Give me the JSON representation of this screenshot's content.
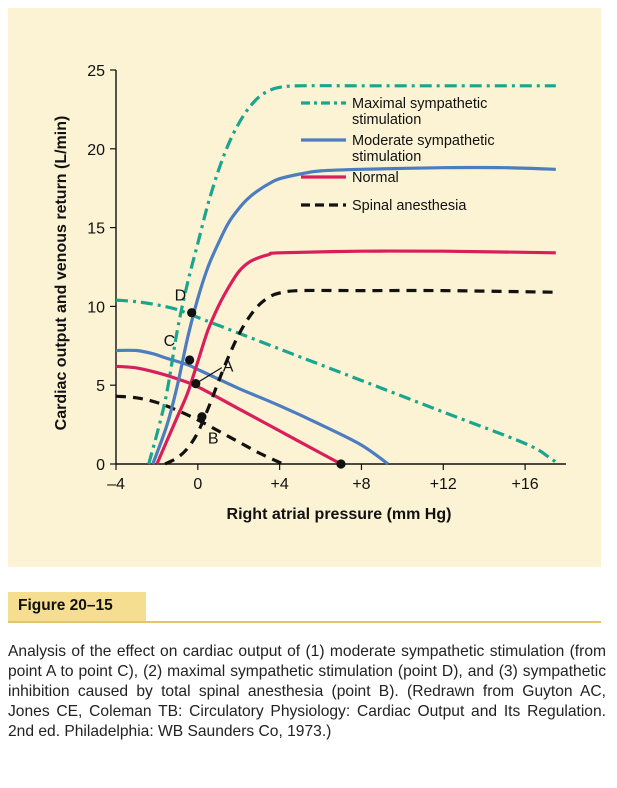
{
  "figure": {
    "label": "Figure 20–15",
    "caption": "Analysis of the effect on cardiac output of (1) moderate sympathetic stimulation (from point A to point C), (2) maximal sympathetic stimulation (point D), and (3) sympathetic inhibition caused by total spinal anesthesia (point B). (Redrawn from Guyton AC, Jones CE, Coleman TB: Circulatory Physiology: Cardiac Output and Its Regulation. 2nd ed. Philadelphia: WB Saunders Co, 1973.)"
  },
  "chart_data": {
    "type": "line",
    "title": "",
    "xlabel": "Right atrial pressure (mm Hg)",
    "ylabel": "Cardiac output and venous return (L/min)",
    "xlim": [
      -4,
      18
    ],
    "ylim": [
      0,
      25
    ],
    "x_ticks": [
      -4,
      0,
      4,
      8,
      12,
      16
    ],
    "x_tick_labels": [
      "–4",
      "0",
      "+4",
      "+8",
      "+12",
      "+16"
    ],
    "y_ticks": [
      0,
      5,
      10,
      15,
      20,
      25
    ],
    "y_tick_labels": [
      "0",
      "5",
      "10",
      "15",
      "20",
      "25"
    ],
    "grid": false,
    "legend_position": "top-right",
    "colors": {
      "maximal": "#1AA58E",
      "moderate": "#4C7DC0",
      "normal": "#D91E5B",
      "spinal": "#111111",
      "panel_background": "#FCF3D4",
      "label_band": "#F5DE8F"
    },
    "series": [
      {
        "name": "Maximal sympathetic stimulation",
        "legend_lines": [
          "Maximal sympathetic",
          "stimulation"
        ],
        "style": "dash-dot",
        "color": "#1AA58E",
        "cardiac_output_curve": [
          [
            -2.4,
            0
          ],
          [
            -1.6,
            4
          ],
          [
            -1.0,
            8.5
          ],
          [
            -0.5,
            11.5
          ],
          [
            0,
            14
          ],
          [
            0.5,
            16.5
          ],
          [
            1,
            18.6
          ],
          [
            1.5,
            20.3
          ],
          [
            2,
            21.6
          ],
          [
            2.5,
            22.6
          ],
          [
            3,
            23.3
          ],
          [
            3.5,
            23.7
          ],
          [
            4,
            23.9
          ],
          [
            5,
            24
          ],
          [
            8,
            24
          ],
          [
            12,
            24
          ],
          [
            17.5,
            24
          ]
        ],
        "venous_return_curve": [
          [
            -4,
            10.4
          ],
          [
            -3,
            10.3
          ],
          [
            -2,
            10.1
          ],
          [
            -1,
            9.8
          ],
          [
            0,
            9.3
          ],
          [
            4,
            7.3
          ],
          [
            8,
            5.3
          ],
          [
            12,
            3.3
          ],
          [
            16,
            1.3
          ],
          [
            17.2,
            0.4
          ],
          [
            17.6,
            0
          ]
        ]
      },
      {
        "name": "Moderate sympathetic stimulation",
        "legend_lines": [
          "Moderate sympathetic",
          "stimulation"
        ],
        "style": "solid",
        "color": "#4C7DC0",
        "cardiac_output_curve": [
          [
            -2.2,
            0
          ],
          [
            -1.5,
            2.5
          ],
          [
            -1.0,
            5
          ],
          [
            -0.5,
            8
          ],
          [
            0,
            10.5
          ],
          [
            0.5,
            12.5
          ],
          [
            1,
            14
          ],
          [
            1.5,
            15.3
          ],
          [
            2,
            16.2
          ],
          [
            2.5,
            16.9
          ],
          [
            3,
            17.4
          ],
          [
            3.5,
            17.8
          ],
          [
            4,
            18.1
          ],
          [
            5,
            18.4
          ],
          [
            6,
            18.6
          ],
          [
            8,
            18.7
          ],
          [
            12,
            18.8
          ],
          [
            15,
            18.8
          ],
          [
            17.5,
            18.7
          ]
        ],
        "venous_return_curve": [
          [
            -4,
            7.2
          ],
          [
            -3,
            7.2
          ],
          [
            -2.2,
            7.0
          ],
          [
            -1.5,
            6.7
          ],
          [
            -0.5,
            6.3
          ],
          [
            0,
            6.0
          ],
          [
            2,
            4.8
          ],
          [
            4,
            3.7
          ],
          [
            6,
            2.5
          ],
          [
            8,
            1.2
          ],
          [
            9.3,
            0
          ]
        ]
      },
      {
        "name": "Normal",
        "legend_lines": [
          "Normal"
        ],
        "style": "solid",
        "color": "#D91E5B",
        "cardiac_output_curve": [
          [
            -2.0,
            0
          ],
          [
            -1.5,
            1.5
          ],
          [
            -1.0,
            3
          ],
          [
            -0.5,
            4.5
          ],
          [
            0,
            6.5
          ],
          [
            0.5,
            8.5
          ],
          [
            1,
            10
          ],
          [
            1.5,
            11.2
          ],
          [
            2,
            12.2
          ],
          [
            2.5,
            12.8
          ],
          [
            3,
            13.1
          ],
          [
            3.5,
            13.3
          ],
          [
            4,
            13.4
          ],
          [
            8,
            13.5
          ],
          [
            12,
            13.5
          ],
          [
            17.5,
            13.4
          ]
        ],
        "venous_return_curve": [
          [
            -4,
            6.2
          ],
          [
            -3,
            6.1
          ],
          [
            -2,
            5.8
          ],
          [
            -1,
            5.4
          ],
          [
            0,
            4.9
          ],
          [
            2,
            3.5
          ],
          [
            4,
            2.1
          ],
          [
            6,
            0.7
          ],
          [
            7,
            0
          ]
        ]
      },
      {
        "name": "Spinal anesthesia",
        "legend_lines": [
          "Spinal anesthesia"
        ],
        "style": "dashed",
        "color": "#111111",
        "cardiac_output_curve": [
          [
            -1.6,
            0
          ],
          [
            -1,
            0.4
          ],
          [
            -0.5,
            1
          ],
          [
            0,
            2
          ],
          [
            0.5,
            3.5
          ],
          [
            1,
            5.2
          ],
          [
            1.5,
            6.8
          ],
          [
            2,
            8.2
          ],
          [
            2.5,
            9.3
          ],
          [
            3,
            10.1
          ],
          [
            3.5,
            10.6
          ],
          [
            4,
            10.85
          ],
          [
            5,
            11
          ],
          [
            8,
            11
          ],
          [
            12,
            11
          ],
          [
            17.5,
            10.9
          ]
        ],
        "venous_return_curve": [
          [
            -4,
            4.3
          ],
          [
            -3,
            4.2
          ],
          [
            -2,
            3.9
          ],
          [
            -1,
            3.4
          ],
          [
            0,
            2.8
          ],
          [
            1,
            2.1
          ],
          [
            2,
            1.4
          ],
          [
            3,
            0.7
          ],
          [
            4,
            0.1
          ],
          [
            4.2,
            0
          ]
        ]
      }
    ],
    "points": [
      {
        "label": "D",
        "x": -0.3,
        "y": 9.6
      },
      {
        "label": "C",
        "x": -0.4,
        "y": 6.6
      },
      {
        "label": "A",
        "x": -0.1,
        "y": 5.1
      },
      {
        "label": "B",
        "x": 0.2,
        "y": 3.0
      },
      {
        "label": "",
        "x": 7.0,
        "y": 0
      }
    ]
  }
}
